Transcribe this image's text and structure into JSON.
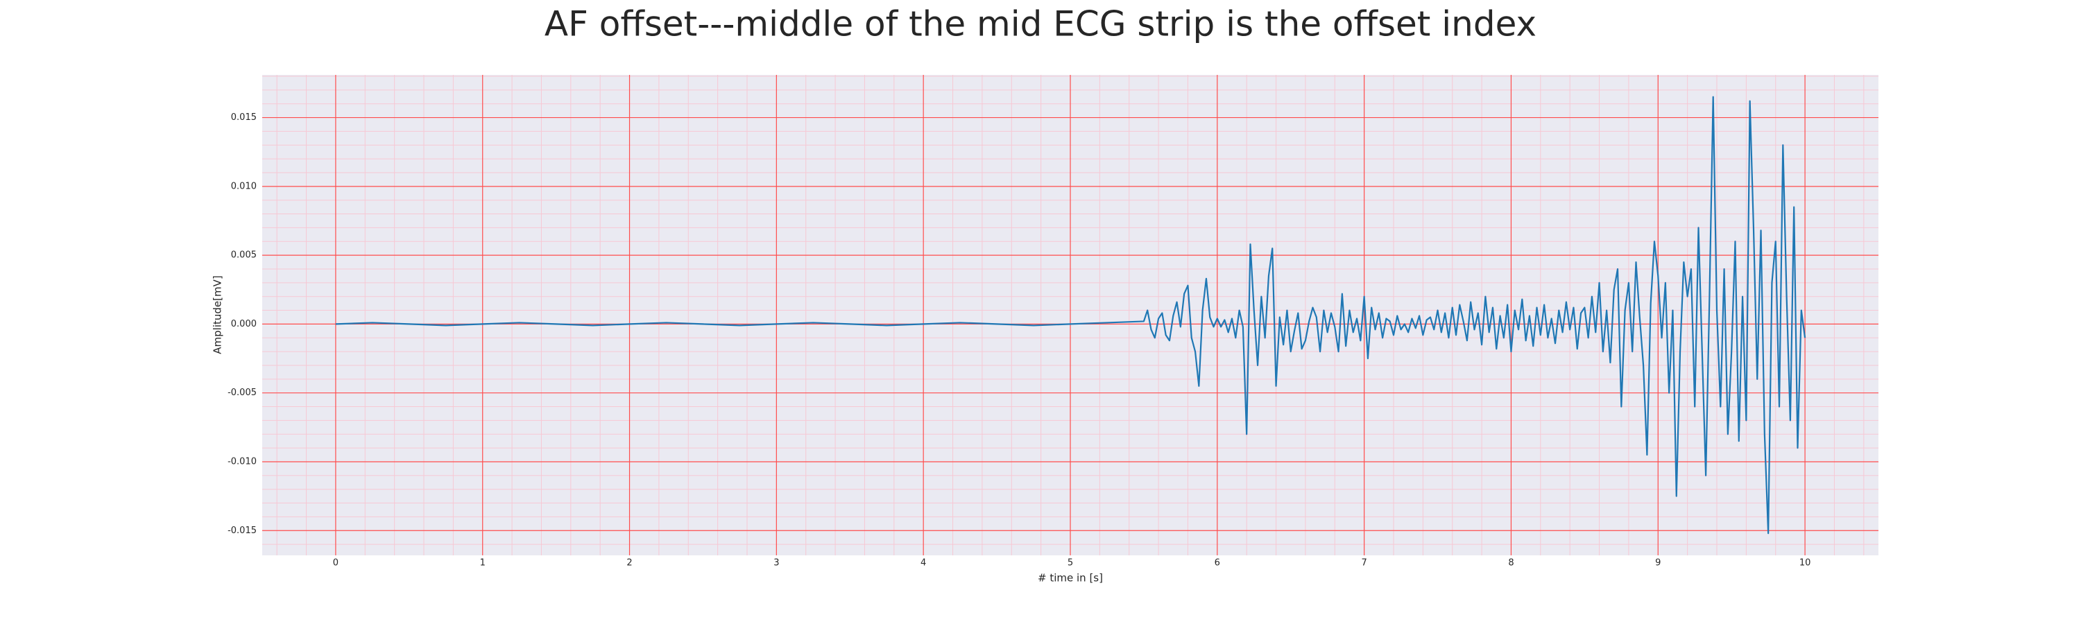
{
  "chart_data": {
    "type": "line",
    "title": "AF offset---middle of the mid ECG strip is the offset index",
    "xlabel": "# time in [s]",
    "ylabel": "Amplitude[mV]",
    "xlim": [
      -0.5,
      10.5
    ],
    "ylim": [
      -0.0168,
      0.0181
    ],
    "xticks": [
      0,
      1,
      2,
      3,
      4,
      5,
      6,
      7,
      8,
      9,
      10
    ],
    "yticks": [
      -0.015,
      {
        "value": -0.01,
        "label": "-0.010"
      },
      -0.005,
      {
        "value": 0,
        "label": "0.000"
      },
      0.005,
      {
        "value": 0.01,
        "label": "0.010"
      },
      0.015
    ],
    "grid": true,
    "minor_grid": true,
    "background": "#eaeaf2",
    "grid_color": "#ff4d4d",
    "minor_grid_color": "#f7c8d4",
    "x": [
      0,
      0.25,
      0.5,
      0.75,
      1,
      1.25,
      1.5,
      1.75,
      2,
      2.25,
      2.5,
      2.75,
      3,
      3.25,
      3.5,
      3.75,
      4,
      4.25,
      4.5,
      4.75,
      5,
      5.25,
      5.5,
      5.525,
      5.55,
      5.575,
      5.6,
      5.625,
      5.65,
      5.675,
      5.7,
      5.725,
      5.75,
      5.775,
      5.8,
      5.825,
      5.85,
      5.875,
      5.9,
      5.925,
      5.95,
      5.975,
      6,
      6.025,
      6.05,
      6.075,
      6.1,
      6.125,
      6.15,
      6.175,
      6.2,
      6.225,
      6.25,
      6.275,
      6.3,
      6.325,
      6.35,
      6.375,
      6.4,
      6.425,
      6.45,
      6.475,
      6.5,
      6.525,
      6.55,
      6.575,
      6.6,
      6.625,
      6.65,
      6.675,
      6.7,
      6.725,
      6.75,
      6.775,
      6.8,
      6.825,
      6.85,
      6.875,
      6.9,
      6.925,
      6.95,
      6.975,
      7,
      7.025,
      7.05,
      7.075,
      7.1,
      7.125,
      7.15,
      7.175,
      7.2,
      7.225,
      7.25,
      7.275,
      7.3,
      7.325,
      7.35,
      7.375,
      7.4,
      7.425,
      7.45,
      7.475,
      7.5,
      7.525,
      7.55,
      7.575,
      7.6,
      7.625,
      7.65,
      7.675,
      7.7,
      7.725,
      7.75,
      7.775,
      7.8,
      7.825,
      7.85,
      7.875,
      7.9,
      7.925,
      7.95,
      7.975,
      8,
      8.025,
      8.05,
      8.075,
      8.1,
      8.125,
      8.15,
      8.175,
      8.2,
      8.225,
      8.25,
      8.275,
      8.3,
      8.325,
      8.35,
      8.375,
      8.4,
      8.425,
      8.45,
      8.475,
      8.5,
      8.525,
      8.55,
      8.575,
      8.6,
      8.625,
      8.65,
      8.675,
      8.7,
      8.725,
      8.75,
      8.775,
      8.8,
      8.825,
      8.85,
      8.875,
      8.9,
      8.925,
      8.95,
      8.975,
      9,
      9.025,
      9.05,
      9.075,
      9.1,
      9.125,
      9.15,
      9.175,
      9.2,
      9.225,
      9.25,
      9.275,
      9.3,
      9.325,
      9.35,
      9.375,
      9.4,
      9.425,
      9.45,
      9.475,
      9.5,
      9.525,
      9.55,
      9.575,
      9.6,
      9.625,
      9.65,
      9.675,
      9.7,
      9.725,
      9.75,
      9.775,
      9.8,
      9.825,
      9.85,
      9.875,
      9.9,
      9.925,
      9.95,
      9.975,
      10
    ],
    "series": [
      {
        "color": "#1f77b4",
        "values": [
          0.0,
          0.0001,
          0.0,
          -0.0001,
          0.0,
          0.0001,
          0.0,
          -0.0001,
          0.0,
          0.0001,
          0.0,
          -0.0001,
          0.0,
          0.0001,
          0.0,
          -0.0001,
          0.0,
          0.0001,
          0.0,
          -0.0001,
          0.0,
          0.0001,
          0.0002,
          0.001,
          -0.0004,
          -0.001,
          0.0004,
          0.0008,
          -0.0008,
          -0.0012,
          0.0006,
          0.0016,
          -0.0002,
          0.0022,
          0.0028,
          -0.001,
          -0.002,
          -0.0045,
          0.001,
          0.0033,
          0.0005,
          -0.0002,
          0.0004,
          -0.0002,
          0.0003,
          -0.0006,
          0.0004,
          -0.001,
          0.001,
          -0.0002,
          -0.008,
          0.0058,
          0.001,
          -0.003,
          0.002,
          -0.001,
          0.0035,
          0.0055,
          -0.0045,
          0.0005,
          -0.0015,
          0.001,
          -0.002,
          -0.0005,
          0.0008,
          -0.0018,
          -0.0012,
          0.0002,
          0.0012,
          0.0005,
          -0.002,
          0.001,
          -0.0006,
          0.0008,
          -0.0002,
          -0.002,
          0.0022,
          -0.0016,
          0.001,
          -0.0006,
          0.0004,
          -0.0012,
          0.002,
          -0.0025,
          0.0012,
          -0.0004,
          0.0008,
          -0.001,
          0.0004,
          0.0002,
          -0.0008,
          0.0006,
          -0.0004,
          0.0,
          -0.0006,
          0.0004,
          -0.0003,
          0.0006,
          -0.0008,
          0.0003,
          0.0005,
          -0.0004,
          0.001,
          -0.0006,
          0.0008,
          -0.001,
          0.0012,
          -0.0008,
          0.0014,
          0.0002,
          -0.0012,
          0.0016,
          -0.0004,
          0.0008,
          -0.0015,
          0.002,
          -0.0006,
          0.0012,
          -0.0018,
          0.0006,
          -0.001,
          0.0014,
          -0.002,
          0.001,
          -0.0004,
          0.0018,
          -0.0012,
          0.0006,
          -0.0016,
          0.0012,
          -0.0008,
          0.0014,
          -0.001,
          0.0004,
          -0.0014,
          0.001,
          -0.0006,
          0.0016,
          -0.0004,
          0.0012,
          -0.0018,
          0.0008,
          0.0012,
          -0.001,
          0.002,
          -0.0006,
          0.003,
          -0.002,
          0.001,
          -0.0028,
          0.0025,
          0.004,
          -0.006,
          0.001,
          0.003,
          -0.002,
          0.0045,
          0.0005,
          -0.003,
          -0.0095,
          0.0015,
          0.006,
          0.0035,
          -0.001,
          0.003,
          -0.005,
          0.001,
          -0.0125,
          -0.002,
          0.0045,
          0.002,
          0.004,
          -0.006,
          0.007,
          -0.002,
          -0.011,
          0.002,
          0.0165,
          0.001,
          -0.006,
          0.004,
          -0.008,
          -0.002,
          0.006,
          -0.0085,
          0.002,
          -0.007,
          0.0162,
          0.007,
          -0.004,
          0.0068,
          -0.008,
          -0.0152,
          0.003,
          0.006,
          -0.006,
          0.013,
          0.002,
          -0.007,
          0.0085,
          -0.009,
          0.001,
          -0.001
        ]
      }
    ]
  }
}
